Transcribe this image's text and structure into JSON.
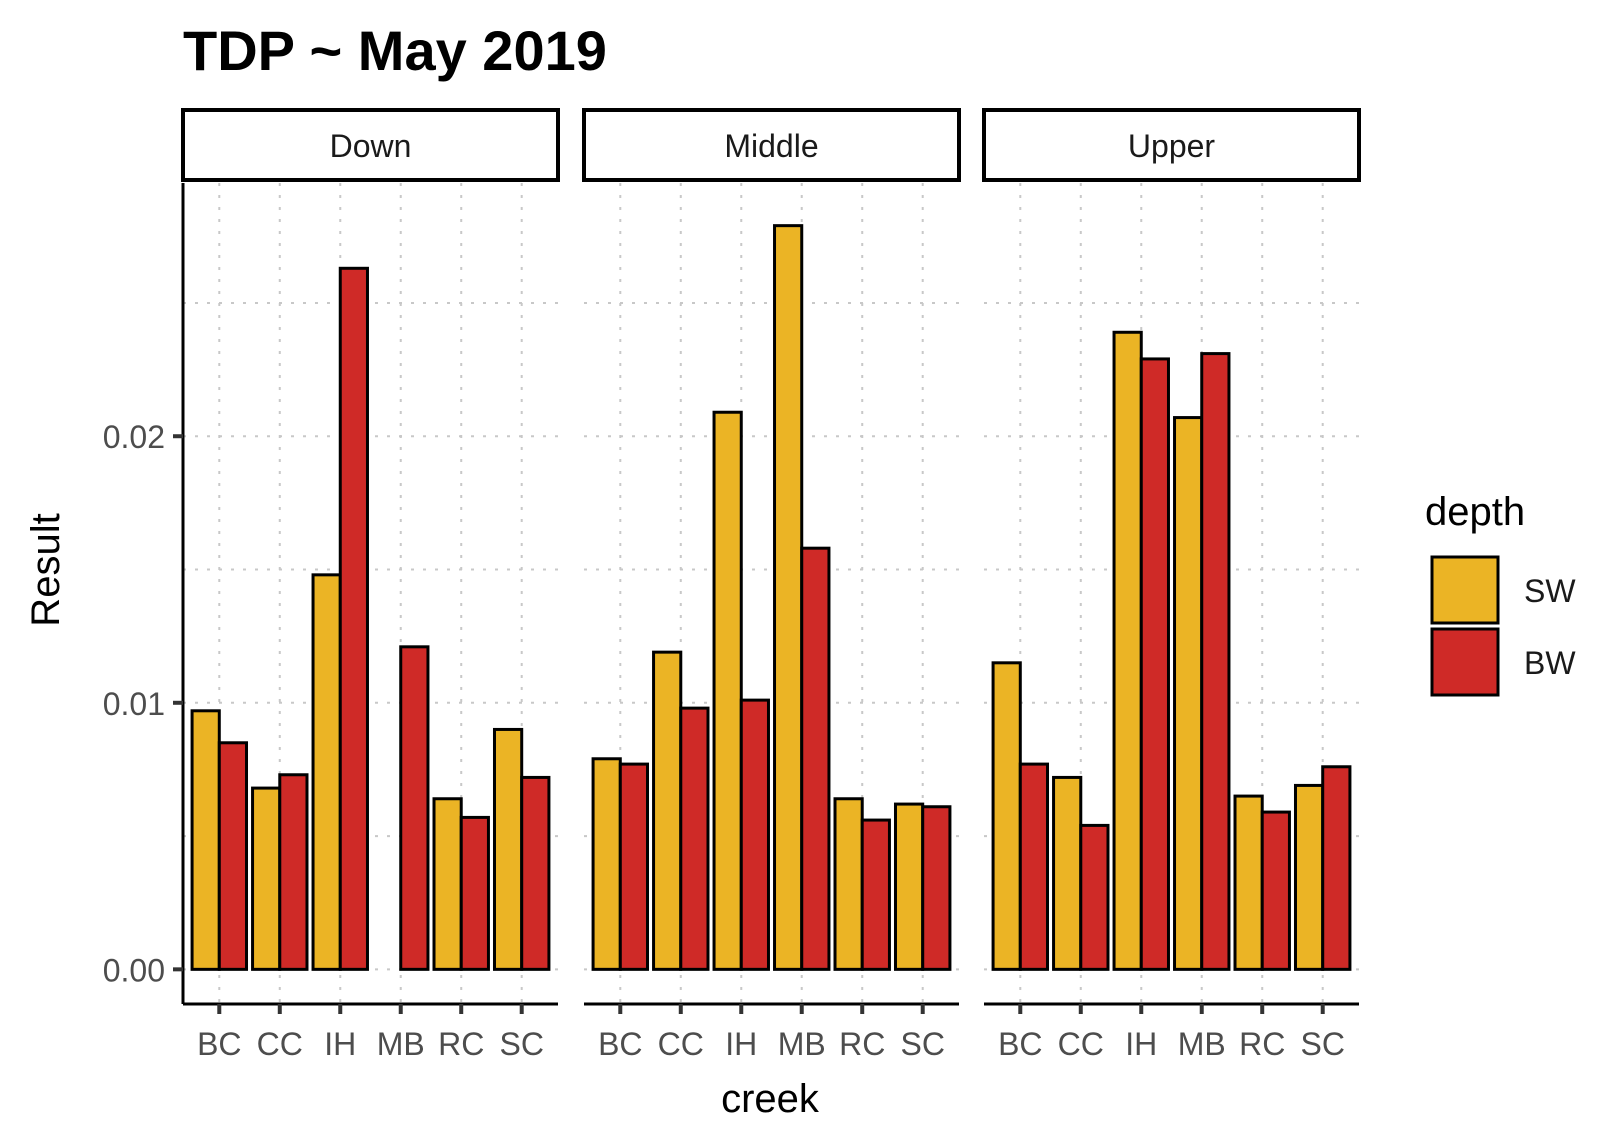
{
  "chart_data": {
    "type": "bar",
    "title": "TDP ~ May 2019",
    "xlabel": "creek",
    "ylabel": "Result",
    "facets": [
      "Down",
      "Middle",
      "Upper"
    ],
    "categories": [
      "BC",
      "CC",
      "IH",
      "MB",
      "RC",
      "SC"
    ],
    "y_ticks": [
      0.0,
      0.01,
      0.02
    ],
    "y_tick_labels": [
      "0.00",
      "0.01",
      "0.02"
    ],
    "ylim": [
      -0.0013,
      0.0295
    ],
    "grid": "dotted",
    "legend": {
      "title": "depth",
      "position": "right",
      "entries": [
        {
          "name": "SW",
          "color": "#EBB425"
        },
        {
          "name": "BW",
          "color": "#CF2A27"
        }
      ]
    },
    "series": [
      {
        "name": "SW",
        "color": "#EBB425",
        "values": {
          "Down": [
            0.0097,
            0.0068,
            0.0148,
            null,
            0.0064,
            0.009
          ],
          "Middle": [
            0.0079,
            0.0119,
            0.0209,
            0.0279,
            0.0064,
            0.0062
          ],
          "Upper": [
            0.0115,
            0.0072,
            0.0239,
            0.0207,
            0.0065,
            0.0069
          ]
        }
      },
      {
        "name": "BW",
        "color": "#CF2A27",
        "values": {
          "Down": [
            0.0085,
            0.0073,
            0.0263,
            0.0121,
            0.0057,
            0.0072
          ],
          "Middle": [
            0.0077,
            0.0098,
            0.0101,
            0.0158,
            0.0056,
            0.0061
          ],
          "Upper": [
            0.0077,
            0.0054,
            0.0229,
            0.0231,
            0.0059,
            0.0076
          ]
        }
      }
    ]
  }
}
